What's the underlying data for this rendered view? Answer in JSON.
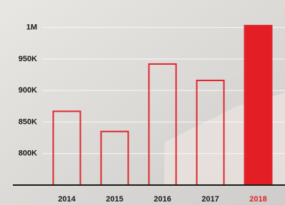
{
  "chart_data": {
    "type": "bar",
    "categories": [
      "2014",
      "2015",
      "2016",
      "2017",
      "2018"
    ],
    "values": [
      867000,
      835000,
      942000,
      916000,
      1003000
    ],
    "fill_colors": [
      "none",
      "none",
      "none",
      "none",
      "#e31e24"
    ],
    "stroke_color": "#e0262e",
    "ylim": [
      750000,
      1030000
    ],
    "yticks": [
      {
        "value": 800000,
        "label": "800K"
      },
      {
        "value": 850000,
        "label": "850K"
      },
      {
        "value": 900000,
        "label": "900K"
      },
      {
        "value": 950000,
        "label": "950K"
      },
      {
        "value": 1000000,
        "label": "1M"
      }
    ],
    "grid": true
  }
}
